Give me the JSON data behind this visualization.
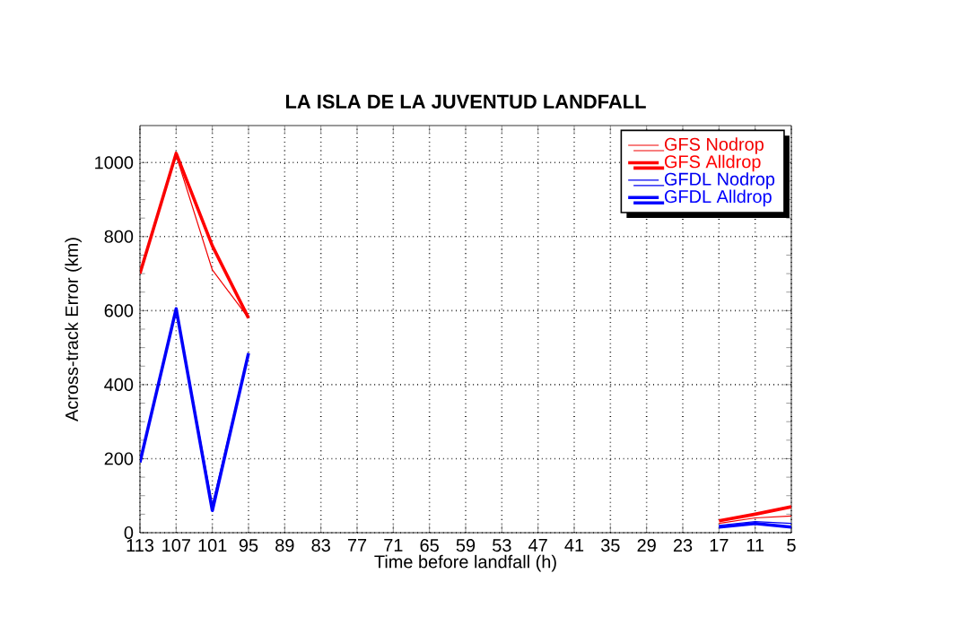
{
  "chart_data": {
    "type": "line",
    "title": "LA ISLA DE LA JUVENTUD LANDFALL",
    "xlabel": "Time before landfall (h)",
    "ylabel": "Across-track Error (km)",
    "x": [
      113,
      107,
      101,
      95,
      89,
      83,
      77,
      71,
      65,
      59,
      53,
      47,
      41,
      35,
      29,
      23,
      17,
      11,
      5
    ],
    "series": [
      {
        "name": "GFS Nodrop",
        "color": "#f20000",
        "values": [
          700,
          1020,
          710,
          580,
          null,
          null,
          null,
          null,
          null,
          null,
          null,
          null,
          null,
          null,
          null,
          null,
          25,
          40,
          45
        ]
      },
      {
        "name": "GFS Alldrop",
        "color": "#ff0000",
        "values": [
          700,
          1025,
          775,
          580,
          null,
          null,
          null,
          null,
          null,
          null,
          null,
          null,
          null,
          null,
          null,
          null,
          32,
          50,
          70
        ]
      },
      {
        "name": "GFDL Nodrop",
        "color": "#0000f2",
        "values": [
          190,
          605,
          75,
          485,
          null,
          null,
          null,
          null,
          null,
          null,
          null,
          null,
          null,
          null,
          null,
          null,
          20,
          30,
          25
        ]
      },
      {
        "name": "GFDL Alldrop",
        "color": "#0000ff",
        "values": [
          190,
          605,
          60,
          485,
          null,
          null,
          null,
          null,
          null,
          null,
          null,
          null,
          null,
          null,
          null,
          null,
          15,
          25,
          15
        ]
      }
    ],
    "xlim": [
      113,
      5
    ],
    "xticks": [
      113,
      107,
      101,
      95,
      89,
      83,
      77,
      71,
      65,
      59,
      53,
      47,
      41,
      35,
      29,
      23,
      17,
      11,
      5
    ],
    "ylim": [
      0,
      1100
    ],
    "yticks": [
      0,
      200,
      400,
      600,
      800,
      1000
    ],
    "grid": true,
    "legend": "top right",
    "marker": "none",
    "line_style": "solid"
  }
}
